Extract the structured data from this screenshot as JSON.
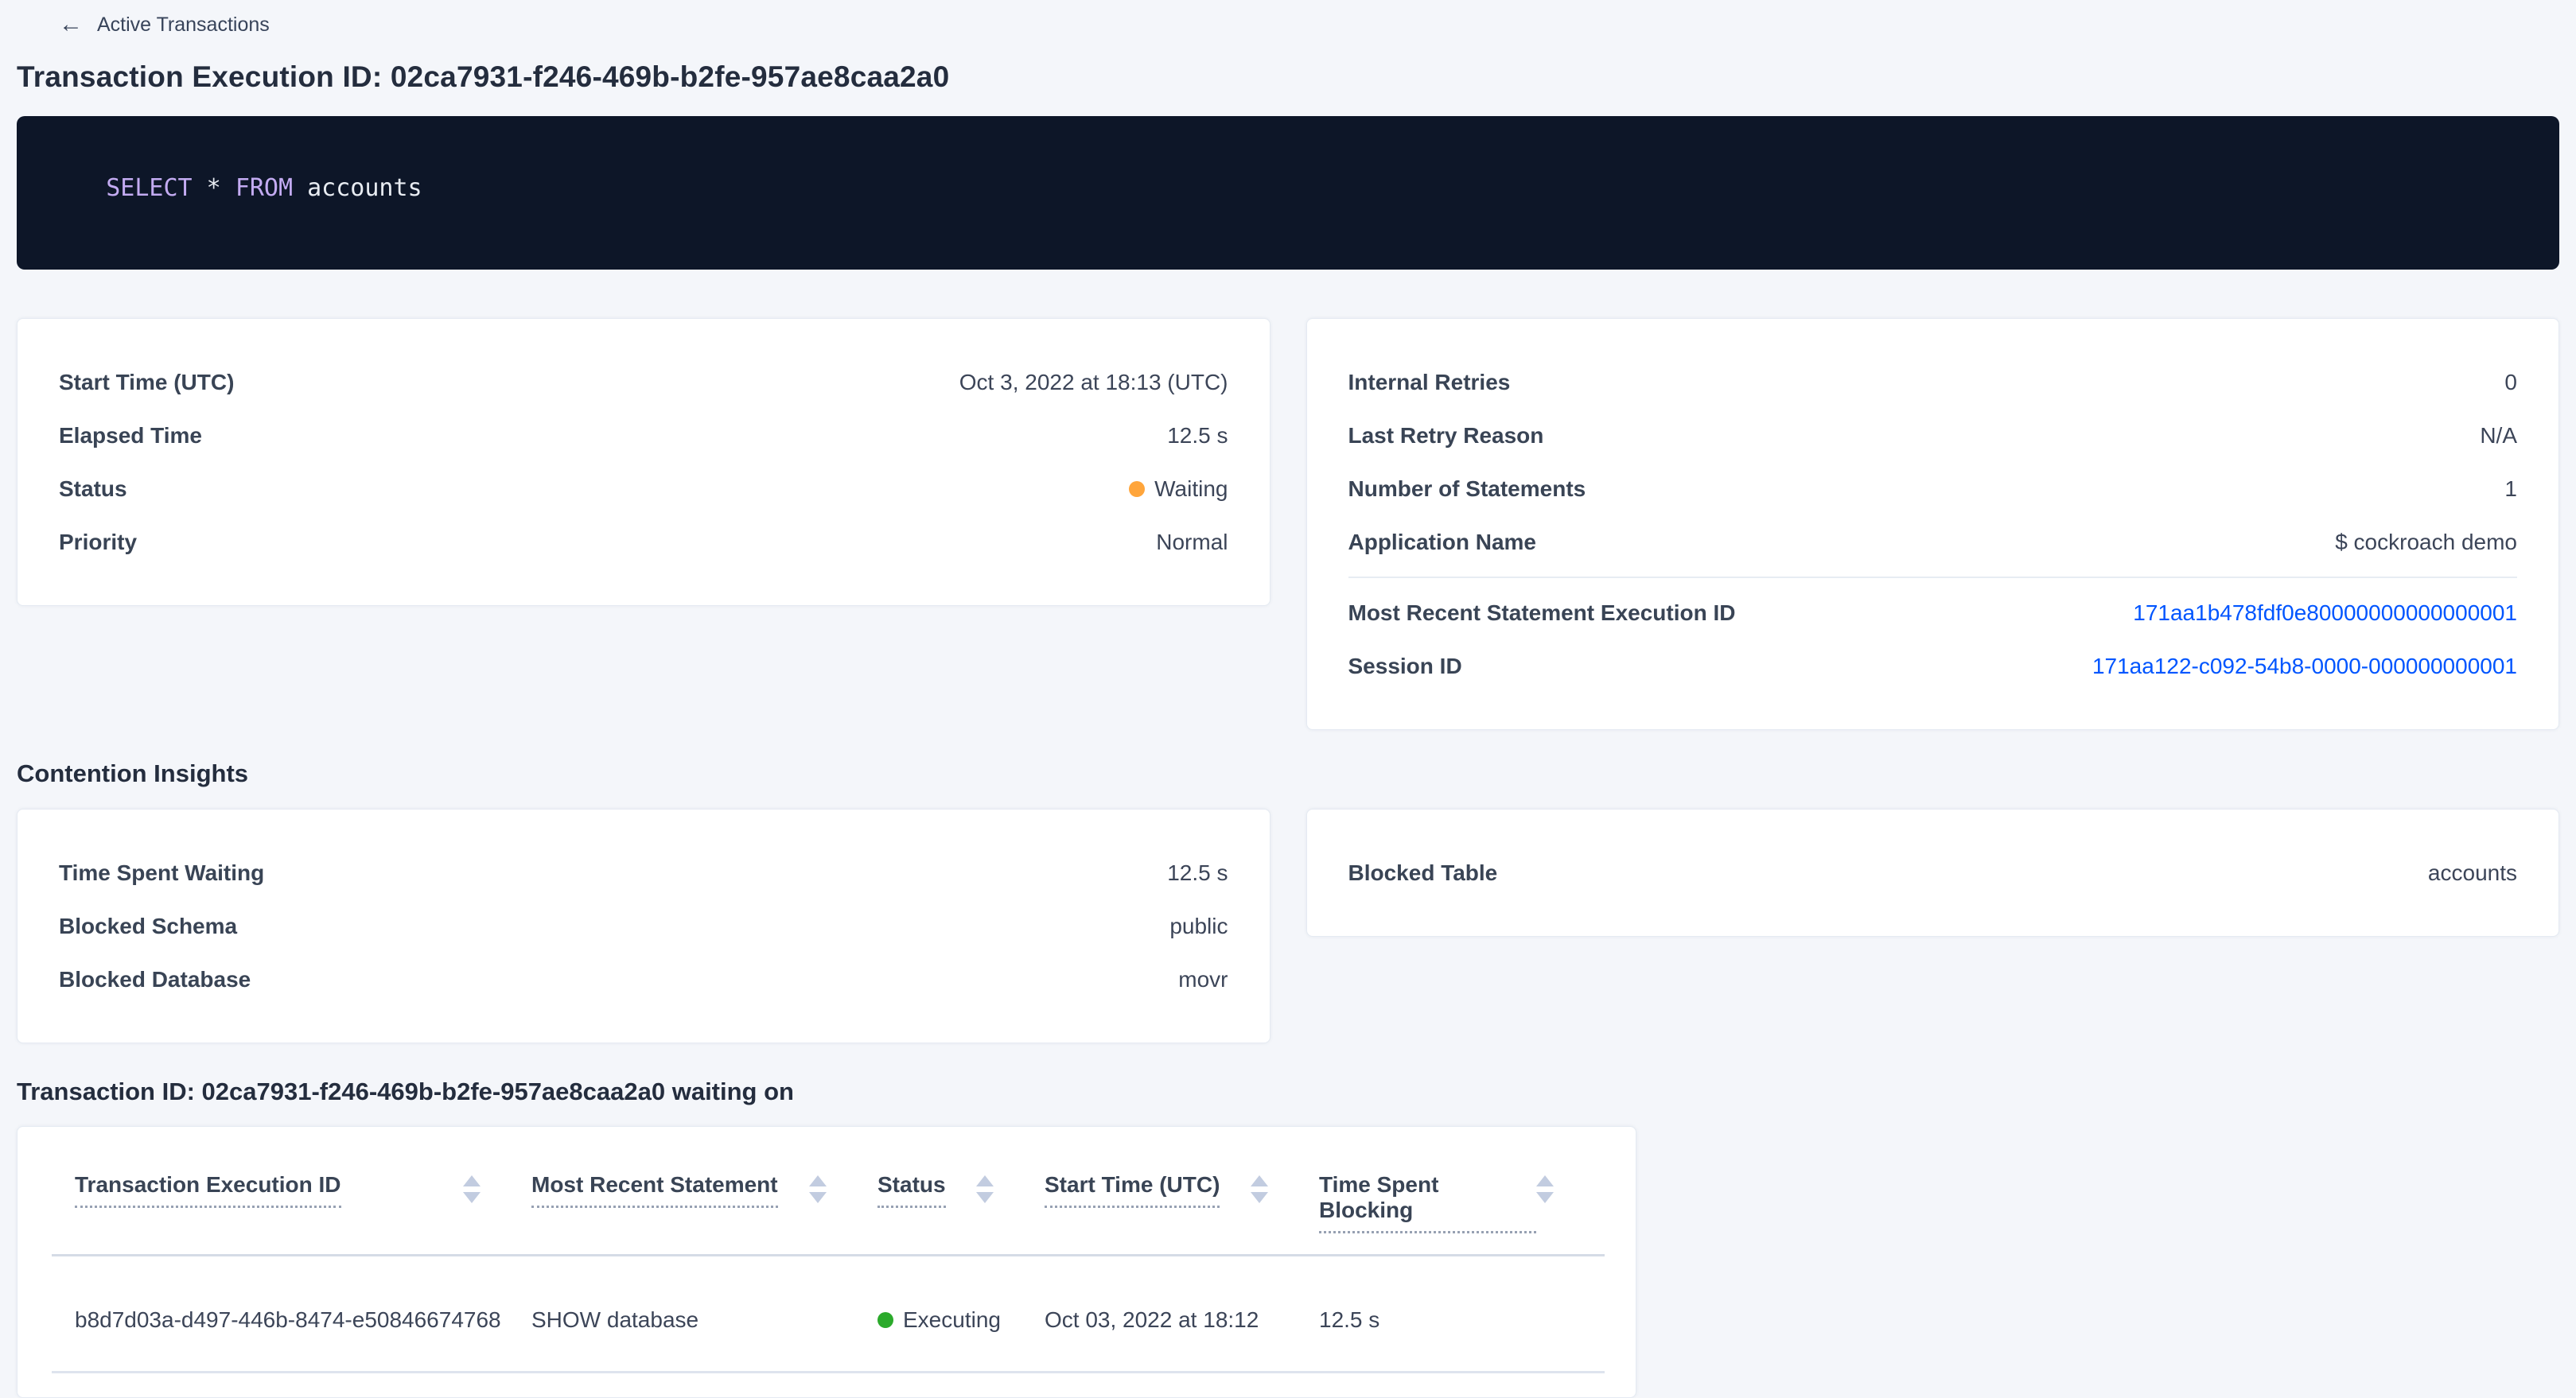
{
  "breadcrumb": {
    "back_label": "Active Transactions"
  },
  "icons": {
    "back_arrow": "←"
  },
  "page_title": "Transaction Execution ID: 02ca7931-f246-469b-b2fe-957ae8caa2a0",
  "sql": {
    "keyword_select": "SELECT",
    "star": " * ",
    "keyword_from": "FROM",
    "table_name": " accounts"
  },
  "colors": {
    "status_waiting": "#ffa53b",
    "status_executing": "#2baa2b",
    "link_blue": "#0055ff",
    "sql_keyword": "#c3abf2",
    "code_background": "#0d1628"
  },
  "summary_left": {
    "rows": [
      {
        "label": "Start Time (UTC)",
        "value": "Oct 3, 2022 at 18:13 (UTC)"
      },
      {
        "label": "Elapsed Time",
        "value": "12.5 s"
      },
      {
        "label": "Status",
        "value": "Waiting"
      },
      {
        "label": "Priority",
        "value": "Normal"
      }
    ]
  },
  "summary_right": {
    "rows": [
      {
        "label": "Internal Retries",
        "value": "0"
      },
      {
        "label": "Last Retry Reason",
        "value": "N/A"
      },
      {
        "label": "Number of Statements",
        "value": "1"
      },
      {
        "label": "Application Name",
        "value": "$ cockroach demo"
      }
    ],
    "link_rows": [
      {
        "label": "Most Recent Statement Execution ID",
        "value": "171aa1b478fdf0e80000000000000001"
      },
      {
        "label": "Session ID",
        "value": "171aa122-c092-54b8-0000-000000000001"
      }
    ]
  },
  "contention": {
    "heading": "Contention Insights",
    "left_rows": [
      {
        "label": "Time Spent Waiting",
        "value": "12.5 s"
      },
      {
        "label": "Blocked Schema",
        "value": "public"
      },
      {
        "label": "Blocked Database",
        "value": "movr"
      }
    ],
    "right_rows": [
      {
        "label": "Blocked Table",
        "value": "accounts"
      }
    ]
  },
  "waiting_table": {
    "heading": "Transaction ID: 02ca7931-f246-469b-b2fe-957ae8caa2a0 waiting on",
    "columns": [
      "Transaction Execution ID",
      "Most Recent Statement",
      "Status",
      "Start Time (UTC)",
      "Time Spent Blocking"
    ],
    "rows": [
      {
        "execution_id": "b8d7d03a-d497-446b-8474-e50846674768",
        "statement": "SHOW database",
        "status": "Executing",
        "start_time": "Oct 03, 2022 at 18:12",
        "time_blocking": "12.5 s"
      }
    ]
  }
}
